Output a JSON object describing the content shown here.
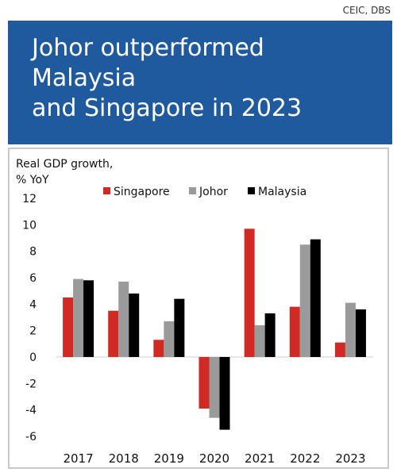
{
  "source": "CEIC, DBS",
  "banner": {
    "title": "Johor outperformed\nMalaysia\nand Singapore in 2023",
    "color": "#1f5a9e"
  },
  "chart_data": {
    "type": "bar",
    "title": "",
    "ylabel": "Real GDP growth,\n% YoY",
    "xlabel": "",
    "categories": [
      "2017",
      "2018",
      "2019",
      "2020",
      "2021",
      "2022",
      "2023"
    ],
    "series": [
      {
        "name": "Singapore",
        "color": "#d12a25",
        "values": [
          4.5,
          3.5,
          1.3,
          -3.9,
          9.7,
          3.8,
          1.1
        ]
      },
      {
        "name": "Johor",
        "color": "#9a9a9a",
        "values": [
          5.9,
          5.7,
          2.7,
          -4.6,
          2.4,
          8.5,
          4.1
        ]
      },
      {
        "name": "Malaysia",
        "color": "#000000",
        "values": [
          5.8,
          4.8,
          4.4,
          -5.5,
          3.3,
          8.9,
          3.6
        ]
      }
    ],
    "ylim": [
      -6,
      12
    ],
    "yticks": [
      12,
      10,
      8,
      6,
      4,
      2,
      0,
      -2,
      -4,
      -6
    ],
    "grid": false,
    "legend_position": "top"
  }
}
